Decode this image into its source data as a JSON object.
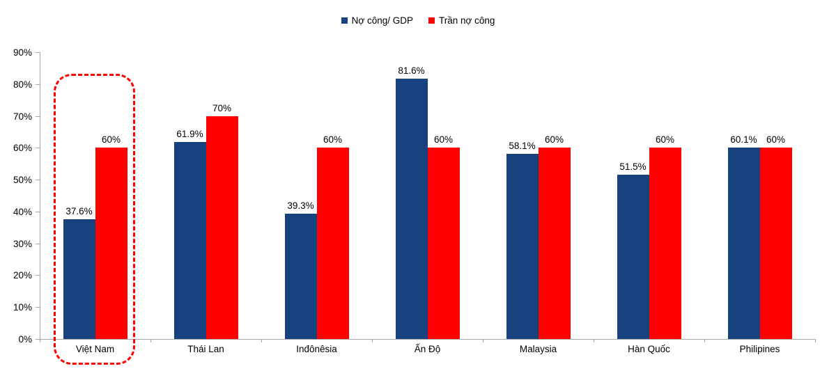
{
  "legend": [
    {
      "label": "Nợ công/ GDP",
      "color": "#17427D"
    },
    {
      "label": "Trần nợ công",
      "color": "#FF0000"
    }
  ],
  "chart_data": {
    "type": "bar",
    "title": "",
    "categories": [
      "Việt Nam",
      "Thái Lan",
      "Inđônêsia",
      "Ấn Độ",
      "Malaysia",
      "Hàn Quốc",
      "Philipines"
    ],
    "series": [
      {
        "name": "Nợ công/ GDP",
        "color": "#17427D",
        "values": [
          37.6,
          61.9,
          39.3,
          81.6,
          58.1,
          51.5,
          60.1
        ],
        "labels": [
          "37.6%",
          "61.9%",
          "39.3%",
          "81.6%",
          "58.1%",
          "51.5%",
          "60.1%"
        ]
      },
      {
        "name": "Trần nợ công",
        "color": "#FF0000",
        "values": [
          60,
          70,
          60,
          60,
          60,
          60,
          60
        ],
        "labels": [
          "60%",
          "70%",
          "60%",
          "60%",
          "60%",
          "60%",
          "60%"
        ]
      }
    ],
    "ylim": [
      0,
      90
    ],
    "ytick_step": 10,
    "ytick_labels": [
      "0%",
      "10%",
      "20%",
      "30%",
      "40%",
      "50%",
      "60%",
      "70%",
      "80%",
      "90%"
    ],
    "grid": "off",
    "legend_position": "top-center",
    "highlight": {
      "category": "Việt Nam",
      "style": "red dashed rounded rectangle"
    },
    "axis_color": "#A6A6A6"
  }
}
